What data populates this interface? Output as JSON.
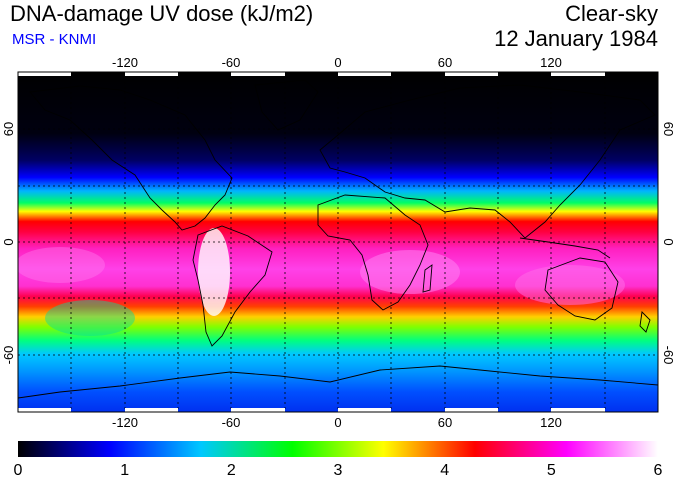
{
  "header": {
    "title": "DNA-damage UV dose (kJ/m2)",
    "source": "MSR - KNMI",
    "condition": "Clear-sky",
    "date": "12 January 1984"
  },
  "map": {
    "lon_ticks": [
      "-120",
      "-60",
      "0",
      "60",
      "120"
    ],
    "lat_ticks_left": [
      "60",
      "0",
      "-60"
    ],
    "lat_ticks_right": [
      "60",
      "0",
      "-60"
    ],
    "lon_range": [
      -180,
      180
    ],
    "lat_range": [
      -90,
      90
    ]
  },
  "colorbar": {
    "tick_labels": [
      "0",
      "1",
      "2",
      "3",
      "4",
      "5",
      "6"
    ],
    "range": [
      0,
      6
    ],
    "colors": [
      "#000000",
      "#0000ff",
      "#00c8ff",
      "#00ff00",
      "#ffff00",
      "#ff0000",
      "#ff00ff",
      "#ffffff"
    ]
  }
}
